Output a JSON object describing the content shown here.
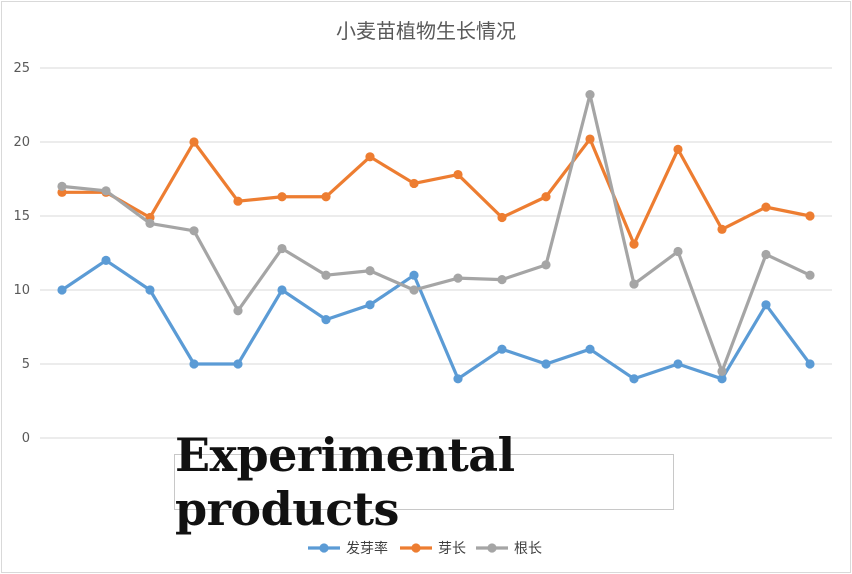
{
  "chart_data": {
    "type": "line",
    "title": "小麦苗植物生长情况",
    "xlabel": "",
    "ylabel": "",
    "ylim": [
      0,
      25
    ],
    "yticks": [
      0,
      5,
      10,
      15,
      20,
      25
    ],
    "grid": true,
    "legend_position": "bottom",
    "series": [
      {
        "name": "发芽率",
        "color": "#5b9bd5",
        "values": [
          10,
          12,
          10,
          5,
          5,
          10,
          8,
          9,
          11,
          4,
          6,
          5,
          6,
          4,
          5,
          4,
          9,
          5
        ]
      },
      {
        "name": "芽长",
        "color": "#ed7d31",
        "values": [
          16.6,
          16.6,
          14.9,
          20,
          16,
          16.3,
          16.3,
          19,
          17.2,
          17.8,
          14.9,
          16.3,
          20.2,
          13.1,
          19.5,
          14.1,
          15.6,
          15
        ]
      },
      {
        "name": "根长",
        "color": "#a5a5a5",
        "values": [
          17,
          16.7,
          14.5,
          14,
          8.6,
          12.8,
          11,
          11.3,
          10,
          10.8,
          10.7,
          11.7,
          23.2,
          10.4,
          12.6,
          4.5,
          12.4,
          11
        ]
      }
    ]
  },
  "banner": {
    "text": "Experimental products"
  }
}
